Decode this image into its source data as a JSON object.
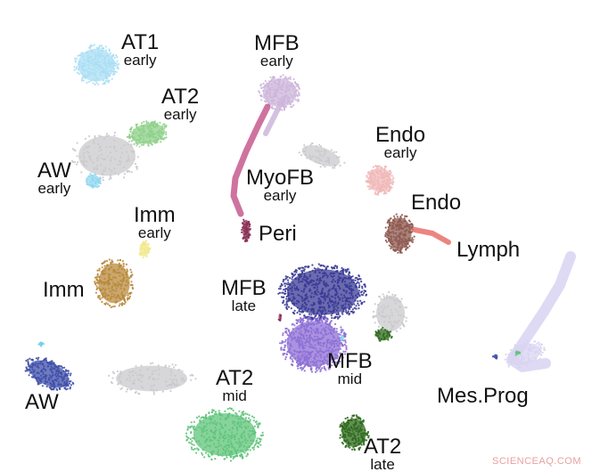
{
  "clusters": [
    {
      "id": "at1",
      "name": "AT1",
      "stage": "early",
      "color": "#a9def4"
    },
    {
      "id": "at2-early",
      "name": "AT2",
      "stage": "early",
      "color": "#8fd08a"
    },
    {
      "id": "aw-early",
      "name": "AW",
      "stage": "early",
      "color": "#8fd8f0"
    },
    {
      "id": "imm-early",
      "name": "Imm",
      "stage": "early",
      "color": "#f2e88a"
    },
    {
      "id": "imm",
      "name": "Imm",
      "stage": "",
      "color": "#b88a3c"
    },
    {
      "id": "aw",
      "name": "AW",
      "stage": "",
      "color": "#3f4fa8"
    },
    {
      "id": "at2-mid",
      "name": "AT2",
      "stage": "mid",
      "color": "#5fc47a"
    },
    {
      "id": "at2-late",
      "name": "AT2",
      "stage": "late",
      "color": "#2d6a1c"
    },
    {
      "id": "mfb-early",
      "name": "MFB",
      "stage": "early",
      "color": "#cdb6da"
    },
    {
      "id": "myofb-early",
      "name": "MyoFB",
      "stage": "early",
      "color": "#c65a8e"
    },
    {
      "id": "peri",
      "name": "Peri",
      "stage": "",
      "color": "#8a2f55"
    },
    {
      "id": "endo-early",
      "name": "Endo",
      "stage": "early",
      "color": "#f1b8b8"
    },
    {
      "id": "endo",
      "name": "Endo",
      "stage": "",
      "color": "#8e5a50"
    },
    {
      "id": "lymph",
      "name": "Lymph",
      "stage": "",
      "color": "#e8706a"
    },
    {
      "id": "mfb-late",
      "name": "MFB",
      "stage": "late",
      "color": "#3a3a96"
    },
    {
      "id": "mfb-mid",
      "name": "MFB",
      "stage": "mid",
      "color": "#8e6fd6"
    },
    {
      "id": "mes-prog",
      "name": "Mes.Prog",
      "stage": "",
      "color": "#d8d4f2"
    }
  ],
  "watermark": "SCIENCEAQ.COM"
}
